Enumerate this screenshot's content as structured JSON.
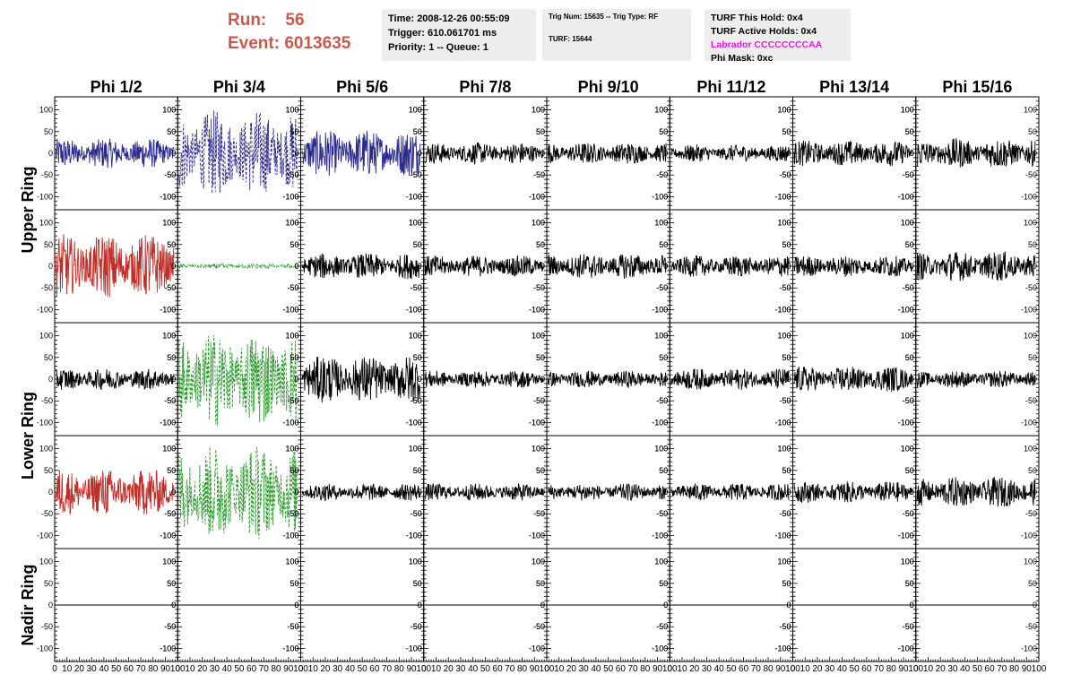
{
  "run": {
    "run_label": "Run:",
    "run_value": "56",
    "event_label": "Event:",
    "event_value": "6013635"
  },
  "info1": {
    "time": "Time: 2008-12-26 00:55:09",
    "trigger": "Trigger: 610.061701 ms",
    "priority": "Priority: 1 -- Queue: 1"
  },
  "info2": {
    "trig": "Trig Num: 15635 -- Trig Type: RF",
    "turf": "TURF: 15644"
  },
  "info3": {
    "this_hold": "TURF This Hold: 0x4",
    "active_holds": "TURF Active Holds: 0x4",
    "labrador": "Labrador CCCCCCCCAA",
    "phi_mask": "Phi Mask: 0xc"
  },
  "colors": {
    "blue": "#2b2b8c",
    "red": "#c0302a",
    "green": "#2e9a2e",
    "black": "#000000"
  },
  "columns": [
    "Phi 1/2",
    "Phi 3/4",
    "Phi 5/6",
    "Phi 7/8",
    "Phi 9/10",
    "Phi 11/12",
    "Phi 13/14",
    "Phi 15/16"
  ],
  "rows": [
    "Upper Ring",
    "Lower Ring",
    "Nadir Ring"
  ],
  "y_ticks": [
    "100",
    "50",
    "0",
    "-50",
    "-100"
  ],
  "x_ticks": [
    "0",
    "10",
    "20",
    "30",
    "40",
    "50",
    "60",
    "70",
    "80",
    "90",
    "100"
  ],
  "chart_data": {
    "type": "line",
    "xlim": [
      0,
      100
    ],
    "ylim": [
      -130,
      130
    ],
    "panels": [
      {
        "row": 1,
        "col": 1,
        "color": "blue",
        "style": "solid",
        "amplitude": 35
      },
      {
        "row": 1,
        "col": 2,
        "color": "blue",
        "style": "dashed",
        "amplitude": 100
      },
      {
        "row": 1,
        "col": 3,
        "color": "blue",
        "style": "solid",
        "amplitude": 55
      },
      {
        "row": 1,
        "col": 4,
        "color": "black",
        "style": "solid",
        "amplitude": 25
      },
      {
        "row": 1,
        "col": 5,
        "color": "black",
        "style": "solid",
        "amplitude": 25
      },
      {
        "row": 1,
        "col": 6,
        "color": "black",
        "style": "solid",
        "amplitude": 20
      },
      {
        "row": 1,
        "col": 7,
        "color": "black",
        "style": "solid",
        "amplitude": 30
      },
      {
        "row": 1,
        "col": 8,
        "color": "black",
        "style": "solid",
        "amplitude": 35
      },
      {
        "row": 2,
        "col": 1,
        "color": "red",
        "style": "solid",
        "amplitude": 75
      },
      {
        "row": 2,
        "col": 2,
        "color": "green",
        "style": "dashed",
        "amplitude": 6
      },
      {
        "row": 2,
        "col": 3,
        "color": "black",
        "style": "solid",
        "amplitude": 30
      },
      {
        "row": 2,
        "col": 4,
        "color": "black",
        "style": "solid",
        "amplitude": 25
      },
      {
        "row": 2,
        "col": 5,
        "color": "black",
        "style": "solid",
        "amplitude": 30
      },
      {
        "row": 2,
        "col": 6,
        "color": "black",
        "style": "solid",
        "amplitude": 25
      },
      {
        "row": 2,
        "col": 7,
        "color": "black",
        "style": "solid",
        "amplitude": 25
      },
      {
        "row": 2,
        "col": 8,
        "color": "black",
        "style": "solid",
        "amplitude": 35
      },
      {
        "row": 3,
        "col": 1,
        "color": "black",
        "style": "solid",
        "amplitude": 25
      },
      {
        "row": 3,
        "col": 2,
        "color": "green",
        "style": "dashed",
        "amplitude": 110
      },
      {
        "row": 3,
        "col": 3,
        "color": "black",
        "style": "solid",
        "amplitude": 55
      },
      {
        "row": 3,
        "col": 4,
        "color": "black",
        "style": "solid",
        "amplitude": 20
      },
      {
        "row": 3,
        "col": 5,
        "color": "black",
        "style": "solid",
        "amplitude": 20
      },
      {
        "row": 3,
        "col": 6,
        "color": "black",
        "style": "solid",
        "amplitude": 25
      },
      {
        "row": 3,
        "col": 7,
        "color": "black",
        "style": "solid",
        "amplitude": 30
      },
      {
        "row": 3,
        "col": 8,
        "color": "black",
        "style": "solid",
        "amplitude": 20
      },
      {
        "row": 4,
        "col": 1,
        "color": "red",
        "style": "solid",
        "amplitude": 55
      },
      {
        "row": 4,
        "col": 2,
        "color": "green",
        "style": "dashed",
        "amplitude": 110
      },
      {
        "row": 4,
        "col": 3,
        "color": "black",
        "style": "solid",
        "amplitude": 20
      },
      {
        "row": 4,
        "col": 4,
        "color": "black",
        "style": "solid",
        "amplitude": 20
      },
      {
        "row": 4,
        "col": 5,
        "color": "black",
        "style": "solid",
        "amplitude": 20
      },
      {
        "row": 4,
        "col": 6,
        "color": "black",
        "style": "solid",
        "amplitude": 20
      },
      {
        "row": 4,
        "col": 7,
        "color": "black",
        "style": "solid",
        "amplitude": 25
      },
      {
        "row": 4,
        "col": 8,
        "color": "black",
        "style": "solid",
        "amplitude": 35
      },
      {
        "row": 5,
        "col": 1,
        "color": "black",
        "style": "solid",
        "amplitude": 0
      },
      {
        "row": 5,
        "col": 2,
        "color": "black",
        "style": "solid",
        "amplitude": 0
      },
      {
        "row": 5,
        "col": 3,
        "color": "black",
        "style": "solid",
        "amplitude": 0
      },
      {
        "row": 5,
        "col": 4,
        "color": "black",
        "style": "solid",
        "amplitude": 0
      },
      {
        "row": 5,
        "col": 5,
        "color": "black",
        "style": "solid",
        "amplitude": 0
      },
      {
        "row": 5,
        "col": 6,
        "color": "black",
        "style": "solid",
        "amplitude": 0
      },
      {
        "row": 5,
        "col": 7,
        "color": "black",
        "style": "solid",
        "amplitude": 0
      },
      {
        "row": 5,
        "col": 8,
        "color": "black",
        "style": "solid",
        "amplitude": 0
      }
    ]
  }
}
